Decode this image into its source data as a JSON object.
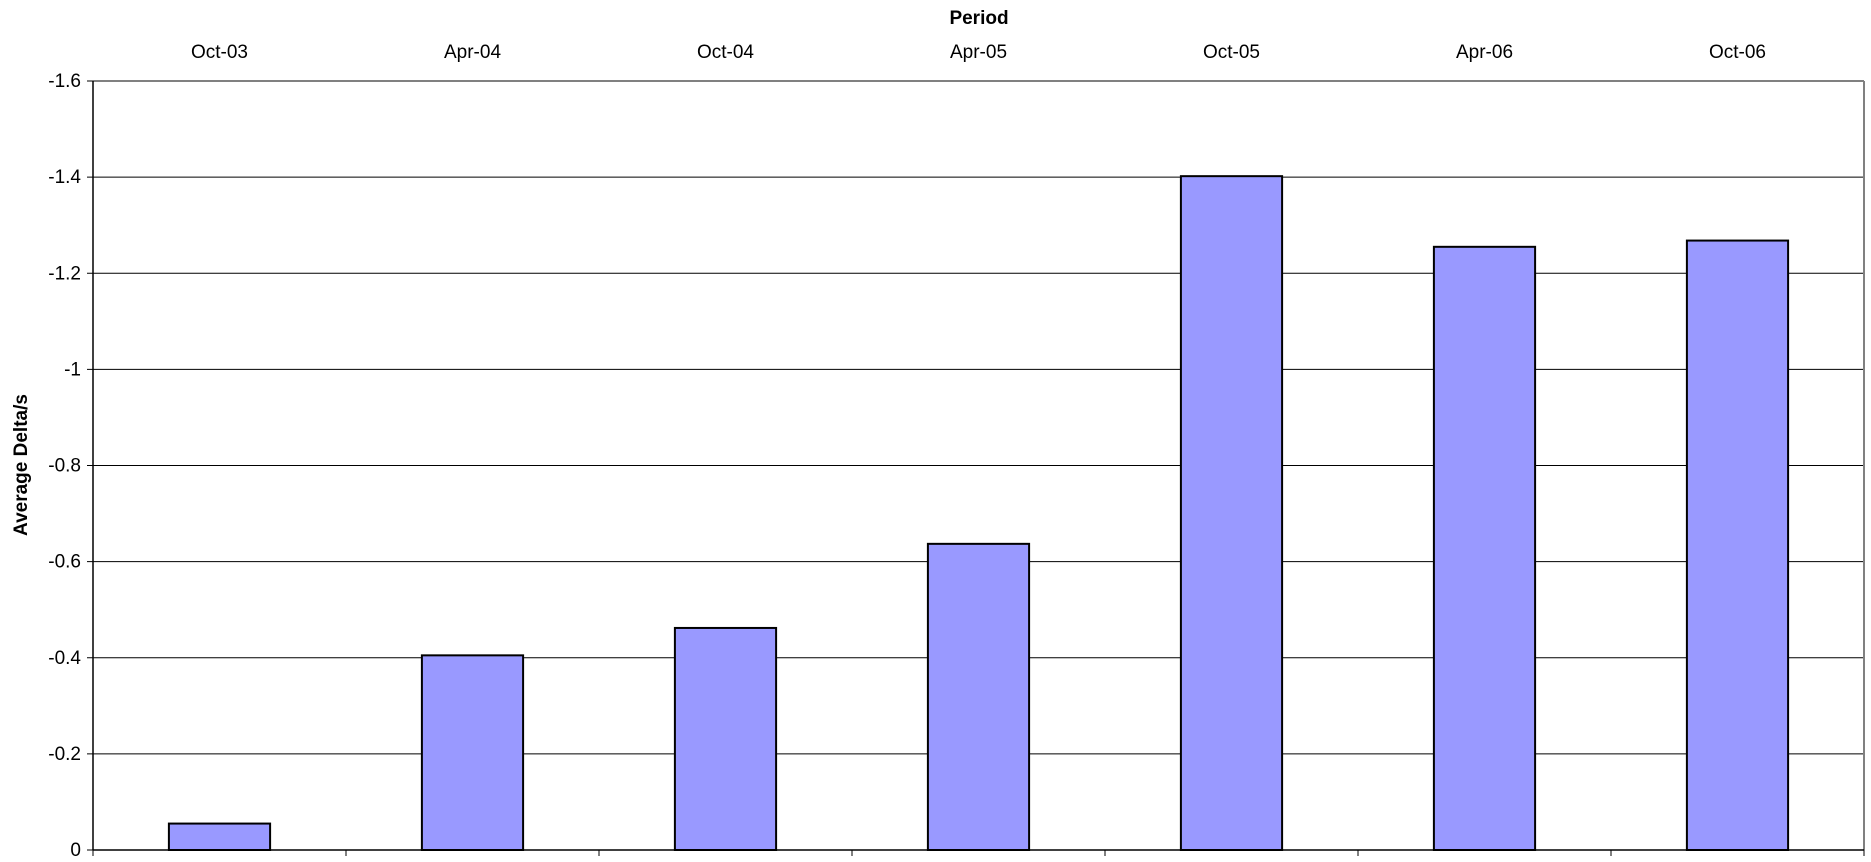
{
  "chart_data": {
    "type": "bar",
    "title": "",
    "xlabel": "Period",
    "ylabel": "Average Delta/s",
    "x_axis_position": "top",
    "y_axis_reversed": true,
    "categories": [
      "Oct-03",
      "Apr-04",
      "Oct-04",
      "Apr-05",
      "Oct-05",
      "Apr-06",
      "Oct-06"
    ],
    "values": [
      -0.055,
      -0.405,
      -0.462,
      -0.637,
      -1.402,
      -1.255,
      -1.268
    ],
    "ylim": [
      0,
      -1.6
    ],
    "yticks": [
      0,
      -0.2,
      -0.4,
      -0.6,
      -0.8,
      -1,
      -1.2,
      -1.4,
      -1.6
    ],
    "ytick_labels": [
      "0",
      "-0.2",
      "-0.4",
      "-0.6",
      "-0.8",
      "-1",
      "-1.2",
      "-1.4",
      "-1.6"
    ],
    "grid": true,
    "legend": "none",
    "colors": {
      "bar_fill": "#9999ff",
      "bar_stroke": "#000000",
      "gridline": "#000000",
      "plot_border": "#808080",
      "background": "#ffffff"
    }
  }
}
